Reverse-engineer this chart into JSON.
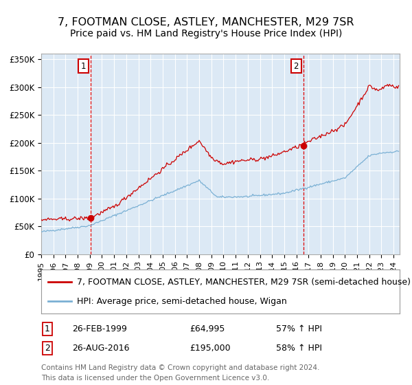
{
  "title": "7, FOOTMAN CLOSE, ASTLEY, MANCHESTER, M29 7SR",
  "subtitle": "Price paid vs. HM Land Registry's House Price Index (HPI)",
  "sale1_price": 64995,
  "sale2_price": 195000,
  "legend_line1": "7, FOOTMAN CLOSE, ASTLEY, MANCHESTER, M29 7SR (semi-detached house)",
  "legend_line2": "HPI: Average price, semi-detached house, Wigan",
  "ann1_box": "1",
  "ann1_date": "26-FEB-1999",
  "ann1_price": "£64,995",
  "ann1_pct": "57% ↑ HPI",
  "ann2_box": "2",
  "ann2_date": "26-AUG-2016",
  "ann2_price": "£195,000",
  "ann2_pct": "58% ↑ HPI",
  "footer_line1": "Contains HM Land Registry data © Crown copyright and database right 2024.",
  "footer_line2": "This data is licensed under the Open Government Licence v3.0.",
  "red_color": "#cc0000",
  "blue_color": "#7ab0d4",
  "bg_color": "#dce9f5",
  "vline_color": "#dd0000",
  "marker_color": "#cc0000",
  "box_edgecolor": "#cc0000",
  "grid_color": "#ffffff",
  "spine_color": "#aaaaaa",
  "legend_edge": "#999999",
  "footer_color": "#666666",
  "title_fontsize": 11.5,
  "subtitle_fontsize": 10,
  "axis_fontsize": 8.5,
  "legend_fontsize": 9,
  "ann_fontsize": 9,
  "footer_fontsize": 7.5,
  "sale1_x": 1999.083,
  "sale2_x": 2016.583,
  "xlim_left": 1995.0,
  "xlim_right": 2024.5,
  "ylim": [
    0,
    360000
  ],
  "yticks": [
    0,
    50000,
    100000,
    150000,
    200000,
    250000,
    300000,
    350000
  ]
}
